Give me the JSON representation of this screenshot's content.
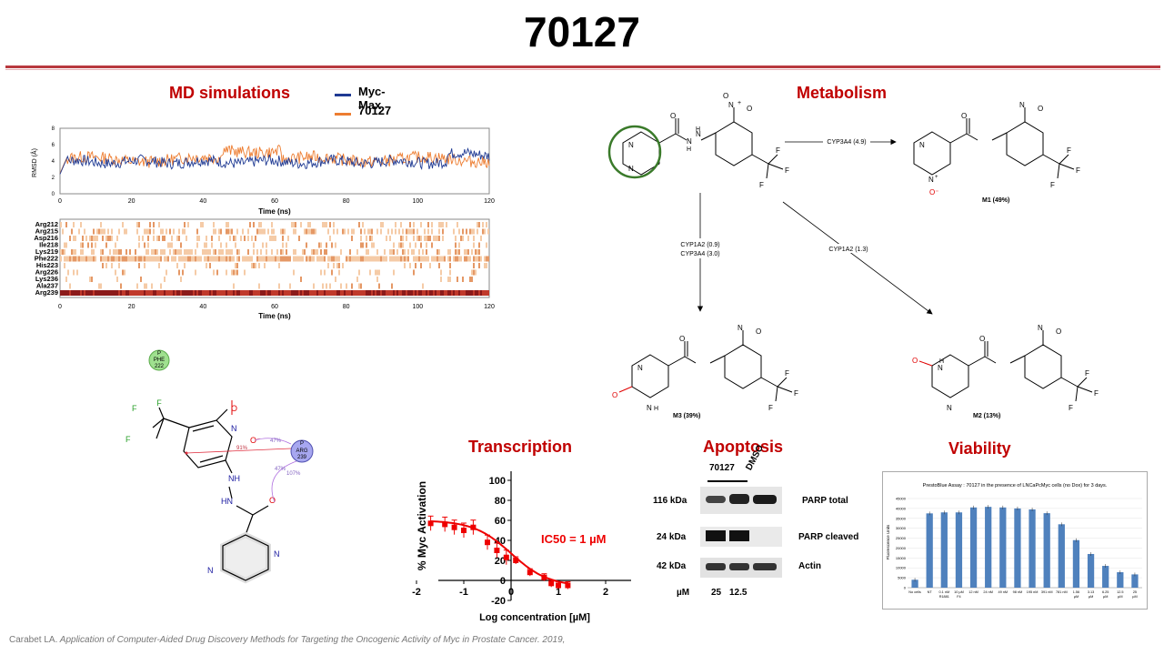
{
  "title": "70127",
  "md": {
    "heading": "MD simulations",
    "legend": [
      {
        "name": "Myc-Max",
        "color": "#1f3a93"
      },
      {
        "name": "70127",
        "color": "#ed7d31"
      }
    ],
    "rmsd_ylabel": "RMSD (Å)",
    "rmsd_yticks": [
      "0",
      "2",
      "4",
      "6",
      "8"
    ],
    "xticks": [
      "0",
      "20",
      "40",
      "60",
      "80",
      "100",
      "120"
    ],
    "xlabel": "Time (ns)",
    "residues": [
      "Arg212",
      "Arg215",
      "Asp216",
      "Ile218",
      "Lys219",
      "Phe222",
      "His223",
      "Arg226",
      "Lys236",
      "Ala237",
      "Arg239"
    ]
  },
  "interaction": {
    "phe_label": [
      "P",
      "PHE",
      "222"
    ],
    "arg_label": [
      "P",
      "ARG",
      "239"
    ],
    "pct": [
      "47%",
      "91%",
      "47%",
      "107%"
    ]
  },
  "metabolism": {
    "heading": "Metabolism",
    "arrows": [
      {
        "label": "CYP3A4 (4.9)"
      },
      {
        "label": "CYP1A2 (0.9)\nCYP3A4 (3.0)"
      },
      {
        "label": "CYP1A2 (1.3)"
      }
    ],
    "products": [
      {
        "name": "M1 (49%)"
      },
      {
        "name": "M3 (39%)"
      },
      {
        "name": "M2 (13%)"
      }
    ]
  },
  "transcription": {
    "heading": "Transcription",
    "ic50": "IC50 = 1 µM",
    "ylabel": "% Myc Activation",
    "xlabel": "Log concentration [µM]",
    "yticks": [
      "-20",
      "0",
      "20",
      "40",
      "60",
      "80",
      "100"
    ],
    "xticks": [
      "-2",
      "-1",
      "0",
      "1",
      "2"
    ]
  },
  "apoptosis": {
    "heading": "Apoptosis",
    "compound": "70127",
    "control": "DMSO",
    "rows": [
      {
        "kda": "116 kDa",
        "protein": "PARP total"
      },
      {
        "kda": "24 kDa",
        "protein": "PARP cleaved"
      },
      {
        "kda": "42 kDa",
        "protein": "Actin"
      }
    ],
    "unit": "µM",
    "doses": [
      "25",
      "12.5"
    ]
  },
  "viability": {
    "heading": "Viability",
    "chart_title": "PrestoBlue Assay : 70127 in the presence of LNCaPcMyc cells (no Dox) for 3 days.",
    "ylabel": "Fluorescence Units",
    "yticks": [
      "0",
      "5000",
      "10000",
      "15000",
      "20000",
      "25000",
      "30000",
      "35000",
      "40000",
      "45000"
    ]
  },
  "chart_data": [
    {
      "type": "line",
      "title": "",
      "xlabel": "Log concentration [µM]",
      "ylabel": "% Myc Activation",
      "ylim": [
        -20,
        100
      ],
      "xlim": [
        -2,
        2
      ],
      "x": [
        -1.7,
        -1.4,
        -1.2,
        -1.0,
        -0.8,
        -0.5,
        -0.3,
        -0.1,
        0.1,
        0.4,
        0.7,
        0.85,
        1.0,
        1.2
      ],
      "series": [
        {
          "values": [
            57,
            56,
            53,
            50,
            53,
            38,
            30,
            23,
            20,
            8,
            3,
            -3,
            -5,
            -5
          ],
          "color": "#ee0000"
        }
      ]
    },
    {
      "type": "bar",
      "title": "PrestoBlue Assay : 70127 in the presence of LNCaPcMyc cells (no Dox) for 3 days.",
      "ylabel": "Fluorescence Units",
      "ylim": [
        0,
        45000
      ],
      "categories": [
        "No cells",
        "NT",
        "0.1 nM R1881",
        "10 µM F4",
        "12 nM",
        "24 nM",
        "49 nM",
        "98 nM",
        "195 nM",
        "391 nM",
        "781 nM",
        "1.56 µM",
        "3.13 µM",
        "6.25 µM",
        "12.5 µM",
        "25 µM"
      ],
      "values": [
        4000,
        37500,
        38000,
        38000,
        40500,
        40800,
        40500,
        40000,
        39500,
        37600,
        32000,
        24000,
        17000,
        11000,
        7800,
        6700
      ],
      "color": "#4f81bd"
    }
  ],
  "citation": {
    "author": "Carabet LA.",
    "text": "Application of Computer-Aided Drug Discovery Methods for Targeting the Oncogenic Activity of Myc in Prostate Cancer. 2019,"
  }
}
